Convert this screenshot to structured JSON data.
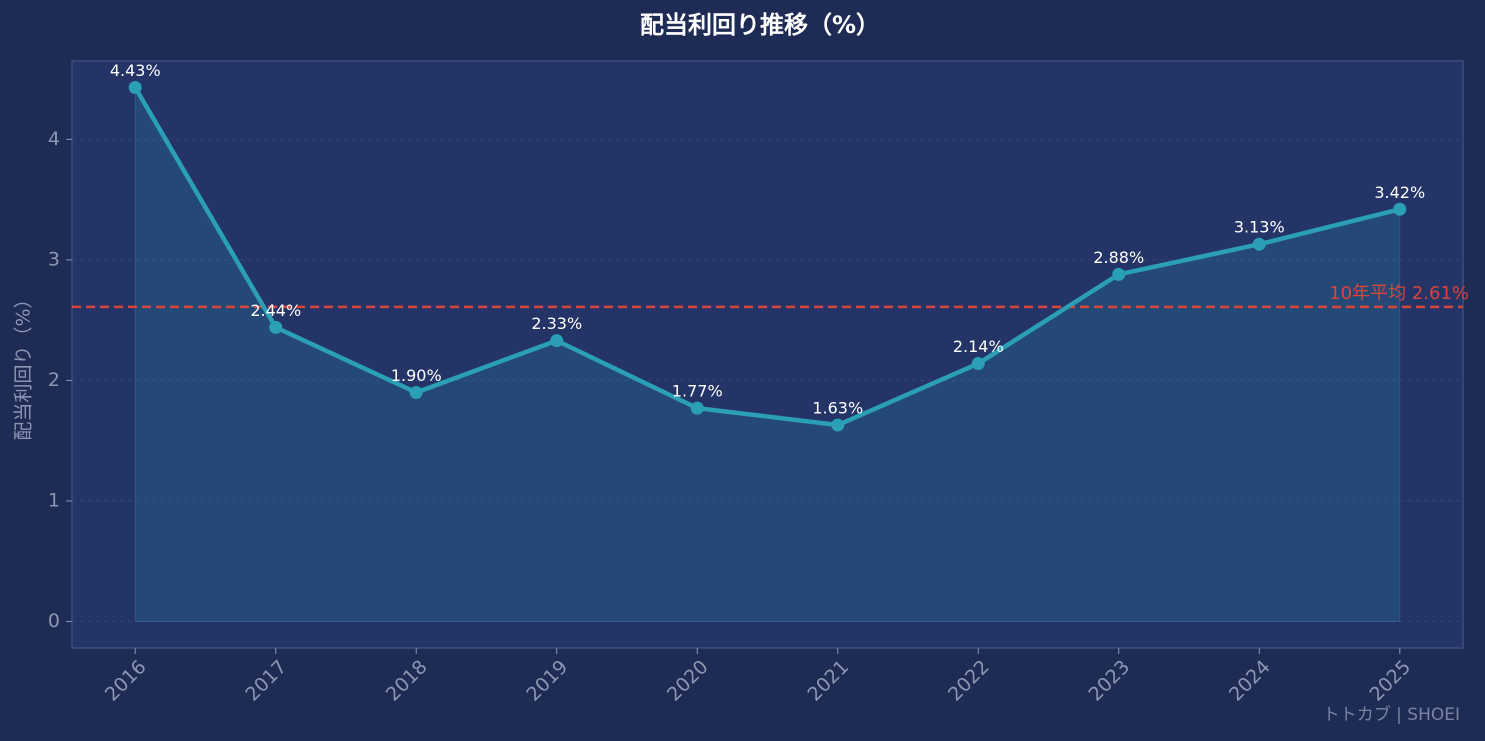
{
  "chart_data": {
    "type": "line",
    "title": "配当利回り推移（%）",
    "y_label": "配当利回り（%）",
    "categories": [
      "2016",
      "2017",
      "2018",
      "2019",
      "2020",
      "2021",
      "2022",
      "2023",
      "2024",
      "2025"
    ],
    "values": [
      4.43,
      2.44,
      1.9,
      2.33,
      1.77,
      1.63,
      2.14,
      2.88,
      3.13,
      3.42
    ],
    "value_labels": [
      "4.43%",
      "2.44%",
      "1.90%",
      "2.33%",
      "1.77%",
      "1.63%",
      "2.14%",
      "2.88%",
      "3.13%",
      "3.42%"
    ],
    "color": "#2a9fb5",
    "ylim": [
      -0.22,
      4.65
    ],
    "yticks": [
      0,
      1,
      2,
      3,
      4
    ],
    "grid": true,
    "reference_line": {
      "value": 2.61,
      "label": "10年平均 2.61%",
      "color": "#d9453a"
    },
    "watermark": "トトカブ | SHOEI"
  }
}
